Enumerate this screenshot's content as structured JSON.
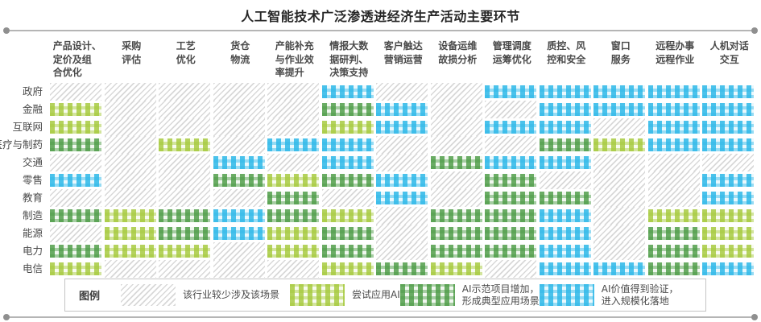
{
  "title": "人工智能技术广泛渗透进经济生产活动主要环节",
  "legend": {
    "title": "图例",
    "levels": [
      {
        "code": 0,
        "name": "rare",
        "color": "#d8d8d8",
        "label": "该行业较少涉及该场景",
        "label_lines": [
          "该行业较少涉及该场景"
        ]
      },
      {
        "code": 1,
        "name": "try",
        "color": "#a5c93b",
        "label": "尝试应用AI",
        "label_lines": [
          "尝试应用AI"
        ]
      },
      {
        "code": 2,
        "name": "demo",
        "color": "#4c9b45",
        "label": "AI示范项目增加，形成典型应用场景",
        "label_lines": [
          "AI示范项目增加，",
          "形成典型应用场景"
        ]
      },
      {
        "code": 3,
        "name": "scale",
        "color": "#2eb8e8",
        "label": "AI价值得到验证，进入规模化落地",
        "label_lines": [
          "AI价值得到验证，",
          "进入规模化落地"
        ]
      }
    ]
  },
  "chart_data": {
    "type": "heatmap",
    "title": "人工智能技术广泛渗透进经济生产活动主要环节",
    "value_meaning": "0=该行业较少涉及该场景, 1=尝试应用AI, 2=AI示范项目增加形成典型应用场景, 3=AI价值得到验证进入规模化落地",
    "columns": [
      {
        "label": "产品设计、定价及组合优化",
        "lines": [
          "产品设计、",
          "定价及组",
          "合优化"
        ]
      },
      {
        "label": "采购评估",
        "lines": [
          "采购",
          "评估"
        ]
      },
      {
        "label": "工艺优化",
        "lines": [
          "工艺",
          "优化"
        ]
      },
      {
        "label": "货仓物流",
        "lines": [
          "货仓",
          "物流"
        ]
      },
      {
        "label": "产能补充与作业效率提升",
        "lines": [
          "产能补充",
          "与作业效",
          "率提升"
        ]
      },
      {
        "label": "情报大数据研判、决策支持",
        "lines": [
          "情报大数",
          "据研判、",
          "决策支持"
        ]
      },
      {
        "label": "客户触达营销运营",
        "lines": [
          "客户触达",
          "营销运营"
        ]
      },
      {
        "label": "设备运维故损分析",
        "lines": [
          "设备运维",
          "故损分析"
        ]
      },
      {
        "label": "管理调度运筹优化",
        "lines": [
          "管理调度",
          "运筹优化"
        ]
      },
      {
        "label": "质控、风控和安全",
        "lines": [
          "质控、风",
          "控和安全"
        ]
      },
      {
        "label": "窗口服务",
        "lines": [
          "窗口",
          "服务"
        ]
      },
      {
        "label": "远程办事远程作业",
        "lines": [
          "远程办事",
          "远程作业"
        ]
      },
      {
        "label": "人机对话交互",
        "lines": [
          "人机对话",
          "交互"
        ]
      }
    ],
    "rows": [
      "政府",
      "金融",
      "互联网",
      "医疗与制药",
      "交通",
      "零售",
      "教育",
      "制造",
      "能源",
      "电力",
      "电信"
    ],
    "values": [
      [
        0,
        0,
        0,
        0,
        0,
        3,
        0,
        0,
        3,
        3,
        3,
        3,
        3
      ],
      [
        1,
        0,
        0,
        0,
        0,
        2,
        3,
        0,
        0,
        3,
        3,
        3,
        3
      ],
      [
        1,
        0,
        0,
        0,
        0,
        1,
        3,
        0,
        3,
        3,
        0,
        3,
        3
      ],
      [
        2,
        0,
        1,
        0,
        3,
        3,
        0,
        0,
        0,
        2,
        1,
        3,
        3
      ],
      [
        0,
        0,
        0,
        3,
        0,
        3,
        0,
        2,
        3,
        3,
        0,
        0,
        0
      ],
      [
        3,
        0,
        0,
        2,
        1,
        2,
        3,
        0,
        2,
        0,
        0,
        0,
        3
      ],
      [
        0,
        0,
        0,
        0,
        2,
        0,
        3,
        0,
        2,
        2,
        0,
        0,
        3
      ],
      [
        2,
        1,
        2,
        3,
        2,
        1,
        0,
        2,
        2,
        3,
        0,
        1,
        1
      ],
      [
        0,
        1,
        2,
        3,
        1,
        2,
        0,
        2,
        2,
        3,
        0,
        2,
        1
      ],
      [
        2,
        1,
        1,
        0,
        1,
        2,
        0,
        2,
        2,
        3,
        0,
        2,
        1
      ],
      [
        1,
        0,
        0,
        0,
        0,
        1,
        2,
        1,
        0,
        3,
        3,
        2,
        3
      ]
    ],
    "legend_position": "bottom",
    "grid": false
  }
}
